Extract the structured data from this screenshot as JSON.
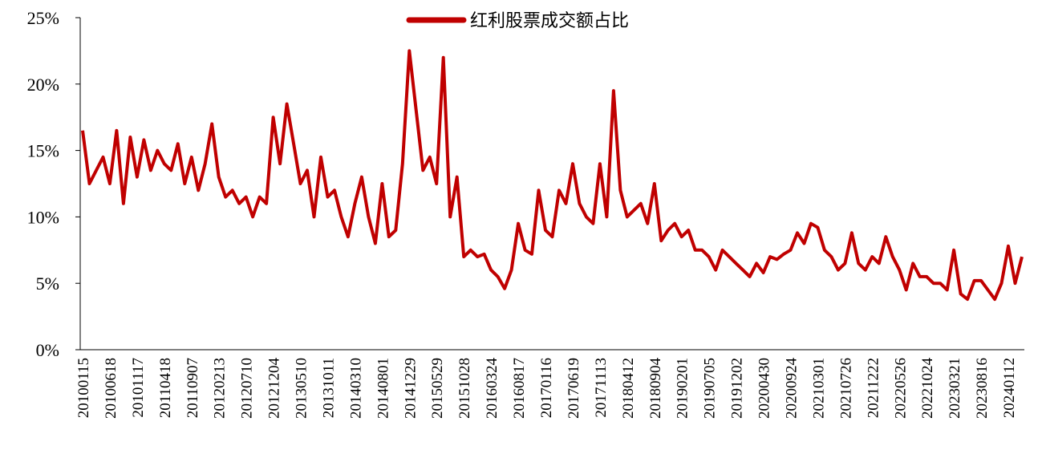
{
  "chart_data": {
    "type": "line",
    "categories": [
      "20100115",
      null,
      null,
      null,
      "20100618",
      null,
      null,
      null,
      "20101117",
      null,
      null,
      null,
      "20110418",
      null,
      null,
      null,
      "20110907",
      null,
      null,
      null,
      "20120213",
      null,
      null,
      null,
      "20120710",
      null,
      null,
      null,
      "20121204",
      null,
      null,
      null,
      "20130510",
      null,
      null,
      null,
      "20131011",
      null,
      null,
      null,
      "20140310",
      null,
      null,
      null,
      "20140801",
      null,
      null,
      null,
      "20141229",
      null,
      null,
      null,
      "20150529",
      null,
      null,
      null,
      "20151028",
      null,
      null,
      null,
      "20160324",
      null,
      null,
      null,
      "20160817",
      null,
      null,
      null,
      "20170116",
      null,
      null,
      null,
      "20170619",
      null,
      null,
      null,
      "20171113",
      null,
      null,
      null,
      "20180412",
      null,
      null,
      null,
      "20180904",
      null,
      null,
      null,
      "20190201",
      null,
      null,
      null,
      "20190705",
      null,
      null,
      null,
      "20191202",
      null,
      null,
      null,
      "20200430",
      null,
      null,
      null,
      "20200924",
      null,
      null,
      null,
      "20210301",
      null,
      null,
      null,
      "20210726",
      null,
      null,
      null,
      "20211222",
      null,
      null,
      null,
      "20220526",
      null,
      null,
      null,
      "20221024",
      null,
      null,
      null,
      "20230321",
      null,
      null,
      null,
      "20230816",
      null,
      null,
      null,
      "20240112",
      null,
      null
    ],
    "series": [
      {
        "name": "红利股票成交额占比",
        "color": "#c00000",
        "values": [
          16.5,
          12.5,
          13.5,
          14.5,
          12.5,
          16.5,
          11,
          16,
          13,
          15.8,
          13.5,
          15,
          14,
          13.5,
          15.5,
          12.5,
          14.5,
          12,
          14,
          17,
          13,
          11.5,
          12,
          11,
          11.5,
          10,
          11.5,
          11,
          17.5,
          14,
          18.5,
          15.5,
          12.5,
          13.5,
          10,
          14.5,
          11.5,
          12,
          10,
          8.5,
          11,
          13,
          10,
          8,
          12.5,
          8.5,
          9,
          14,
          22.5,
          18,
          13.5,
          14.5,
          12.5,
          22,
          10,
          13,
          7,
          7.5,
          7,
          7.2,
          6,
          5.5,
          4.6,
          6,
          9.5,
          7.5,
          7.2,
          12,
          9,
          8.5,
          12,
          11,
          14,
          11,
          10,
          9.5,
          14,
          10,
          19.5,
          12,
          10,
          10.5,
          11,
          9.5,
          12.5,
          8.2,
          9,
          9.5,
          8.5,
          9,
          7.5,
          7.5,
          7,
          6,
          7.5,
          7,
          6.5,
          6,
          5.5,
          6.5,
          5.8,
          7,
          6.8,
          7.2,
          7.5,
          8.8,
          8,
          9.5,
          9.2,
          7.5,
          7,
          6,
          6.5,
          8.8,
          6.5,
          6,
          7,
          6.5,
          8.5,
          7,
          6,
          4.5,
          6.5,
          5.5,
          5.5,
          5,
          5,
          4.5,
          7.5,
          4.2,
          3.8,
          5.2,
          5.2,
          4.5,
          3.8,
          5,
          7.8,
          5,
          7
        ]
      }
    ],
    "ylim": [
      0,
      25
    ],
    "yticks": [
      {
        "value": 0,
        "label": "0%"
      },
      {
        "value": 5,
        "label": "5%"
      },
      {
        "value": 10,
        "label": "10%"
      },
      {
        "value": 15,
        "label": "15%"
      },
      {
        "value": 20,
        "label": "20%"
      },
      {
        "value": 25,
        "label": "25%"
      }
    ],
    "legend": "top"
  }
}
